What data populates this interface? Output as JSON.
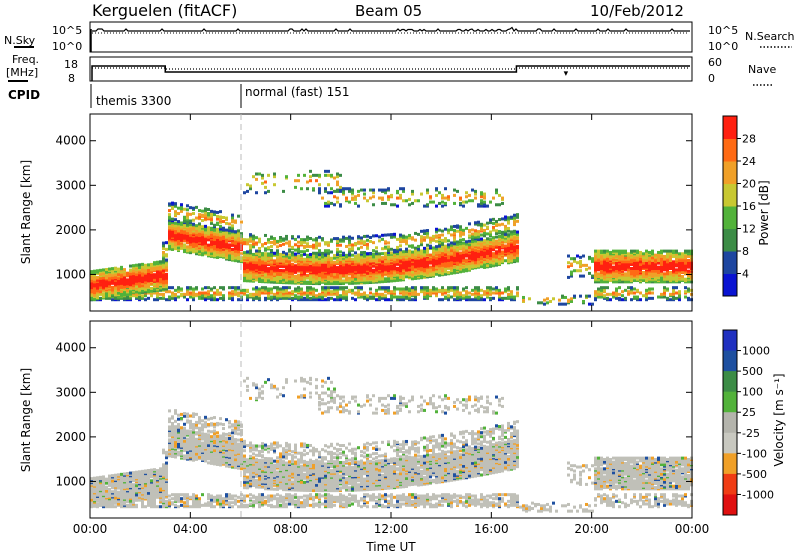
{
  "header": {
    "station": "Kerguelen (fitACF)",
    "beam": "Beam 05",
    "date": "10/Feb/2012"
  },
  "nsky_panel": {
    "left_label": "N.Sky",
    "right_label": "N.Search",
    "left_ticks": [
      "10^5",
      "10^0"
    ],
    "right_ticks": [
      "10^5",
      "10^0"
    ]
  },
  "freq_panel": {
    "left_label_1": "Freq.",
    "left_label_2": "[MHz]",
    "right_label": "Nave",
    "left_ticks": [
      "18",
      "8"
    ],
    "right_ticks": [
      "60",
      "0"
    ]
  },
  "cpid": {
    "label": "CPID",
    "modes": [
      {
        "name": "themis 3300",
        "start_hour": 0,
        "end_hour": 6
      },
      {
        "name": "normal (fast) 151",
        "start_hour": 6,
        "end_hour": 24
      }
    ]
  },
  "colors": {
    "power_scale": [
      "#0a14d2",
      "#1e46a0",
      "#3c8c46",
      "#52b23a",
      "#c8c832",
      "#f0a028",
      "#ff6a14",
      "#ff2010"
    ],
    "velocity_scale": [
      "#e01010",
      "#f03c14",
      "#f0a028",
      "#c8c8c0",
      "#b4b4ac",
      "#52b23a",
      "#3c8c46",
      "#1e50a0",
      "#2030c0"
    ],
    "ground_scatter": "#c0c0b8"
  },
  "chart_data": [
    {
      "type": "heatmap",
      "name": "power",
      "ylabel": "Slant Range [km]",
      "ylim": [
        180,
        4600
      ],
      "xlim_hours": [
        0,
        24
      ],
      "y_ticks": [
        "1000",
        "2000",
        "3000",
        "4000"
      ],
      "x_ticks": [
        "00:00",
        "04:00",
        "08:00",
        "12:00",
        "16:00",
        "20:00",
        "00:00"
      ],
      "colorbar": {
        "label": "Power [dB]",
        "ticks": [
          "4",
          "8",
          "12",
          "16",
          "20",
          "24",
          "28"
        ],
        "range": [
          0,
          32
        ]
      }
    },
    {
      "type": "heatmap",
      "name": "velocity",
      "ylabel": "Slant Range [km]",
      "xlabel": "Time UT",
      "ylim": [
        180,
        4600
      ],
      "xlim_hours": [
        0,
        24
      ],
      "y_ticks": [
        "1000",
        "2000",
        "3000",
        "4000"
      ],
      "x_ticks": [
        "00:00",
        "04:00",
        "08:00",
        "12:00",
        "16:00",
        "20:00",
        "00:00"
      ],
      "colorbar": {
        "label": "Velocity [m s⁻¹]",
        "ticks": [
          "1000",
          "500",
          "100",
          "25",
          "-25",
          "-100",
          "-500",
          "-1000"
        ]
      }
    }
  ]
}
